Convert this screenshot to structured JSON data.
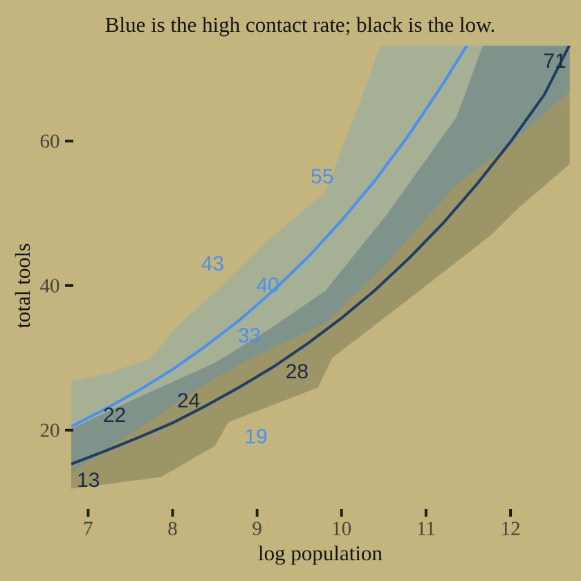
{
  "title": "Blue is the high contact rate; black is the low.",
  "colors": {
    "background": "#c3b57d",
    "band_high_over_bg": "#a5b094",
    "band_overlap": "#80938b",
    "band_low_over_bg": "#9b9568",
    "line_high": "#4a90ee",
    "line_low": "#1e3e64",
    "label_high": "#4a90ee",
    "label_low": "#1b2a42",
    "tick_text": "#45443b",
    "tick_mark": "#1f1f1a",
    "title_text": "#15150f"
  },
  "chart_data": {
    "type": "line",
    "title": "Blue is the high contact rate; black is the low.",
    "xlabel": "log population",
    "ylabel": "total tools",
    "xlim": [
      6.8,
      12.72
    ],
    "ylim": [
      10.7,
      73.2
    ],
    "x_ticks": [
      7,
      8,
      9,
      10,
      11,
      12
    ],
    "y_ticks": [
      20,
      40,
      60
    ],
    "grid": false,
    "legend": "none (described in title)",
    "series": [
      {
        "name": "high contact posterior mean",
        "color": "#4a90ee",
        "points": [
          [
            6.8,
            20.5
          ],
          [
            7.2,
            22.9
          ],
          [
            7.6,
            25.5
          ],
          [
            8.0,
            28.4
          ],
          [
            8.4,
            31.7
          ],
          [
            8.8,
            35.3
          ],
          [
            9.2,
            39.4
          ],
          [
            9.6,
            43.9
          ],
          [
            10.0,
            49.0
          ],
          [
            10.4,
            54.6
          ],
          [
            10.8,
            60.9
          ],
          [
            11.2,
            67.9
          ],
          [
            11.55,
            74.5
          ]
        ]
      },
      {
        "name": "low contact posterior mean",
        "color": "#1e3e64",
        "points": [
          [
            6.8,
            15.3
          ],
          [
            7.2,
            17.1
          ],
          [
            7.6,
            19.0
          ],
          [
            8.0,
            21.0
          ],
          [
            8.4,
            23.4
          ],
          [
            8.8,
            26.0
          ],
          [
            9.2,
            28.8
          ],
          [
            9.6,
            32.0
          ],
          [
            10.0,
            35.5
          ],
          [
            10.4,
            39.4
          ],
          [
            10.8,
            43.8
          ],
          [
            11.2,
            48.6
          ],
          [
            11.6,
            54.0
          ],
          [
            12.0,
            59.9
          ],
          [
            12.4,
            66.4
          ],
          [
            12.73,
            74.0
          ]
        ]
      }
    ],
    "bands": {
      "high_contact_interval": {
        "upper": [
          [
            6.8,
            26.7
          ],
          [
            7.27,
            28.0
          ],
          [
            7.72,
            29.8
          ],
          [
            8.09,
            34.7
          ],
          [
            8.5,
            39.1
          ],
          [
            9.15,
            46.5
          ],
          [
            9.81,
            52.9
          ],
          [
            10.05,
            60.4
          ],
          [
            10.3,
            68.0
          ],
          [
            10.52,
            75.0
          ],
          [
            12.72,
            95.0
          ]
        ],
        "lower": [
          [
            6.8,
            14.1
          ],
          [
            7.59,
            20.2
          ],
          [
            8.5,
            27.2
          ],
          [
            9.15,
            31.2
          ],
          [
            9.81,
            34.8
          ],
          [
            10.54,
            43.1
          ],
          [
            11.36,
            54.0
          ],
          [
            12.02,
            59.7
          ],
          [
            12.7,
            66.9
          ]
        ]
      },
      "low_contact_interval": {
        "upper": [
          [
            6.8,
            20.2
          ],
          [
            7.59,
            24.5
          ],
          [
            8.5,
            29.3
          ],
          [
            9.15,
            34.0
          ],
          [
            9.81,
            39.3
          ],
          [
            10.54,
            49.9
          ],
          [
            11.36,
            63.3
          ],
          [
            11.73,
            75.0
          ],
          [
            12.7,
            95.0
          ]
        ],
        "lower": [
          [
            6.8,
            11.9
          ],
          [
            7.86,
            13.5
          ],
          [
            8.5,
            17.8
          ],
          [
            8.66,
            21.1
          ],
          [
            9.72,
            25.9
          ],
          [
            9.89,
            30.0
          ],
          [
            10.87,
            38.8
          ],
          [
            11.77,
            47.0
          ],
          [
            12.1,
            50.8
          ],
          [
            12.7,
            56.8
          ]
        ]
      }
    },
    "point_labels": [
      {
        "text": "13",
        "x": 7.003,
        "y": 13,
        "contact": "low"
      },
      {
        "text": "22",
        "x": 7.313,
        "y": 22,
        "contact": "low"
      },
      {
        "text": "24",
        "x": 8.189,
        "y": 24,
        "contact": "low"
      },
      {
        "text": "43",
        "x": 8.474,
        "y": 43,
        "contact": "high"
      },
      {
        "text": "33",
        "x": 8.909,
        "y": 33,
        "contact": "high"
      },
      {
        "text": "19",
        "x": 8.987,
        "y": 19,
        "contact": "high"
      },
      {
        "text": "40",
        "x": 9.127,
        "y": 40,
        "contact": "high"
      },
      {
        "text": "28",
        "x": 9.473,
        "y": 28,
        "contact": "low"
      },
      {
        "text": "55",
        "x": 9.77,
        "y": 55,
        "contact": "high"
      },
      {
        "text": "71",
        "x": 12.524,
        "y": 71,
        "contact": "low"
      }
    ]
  }
}
